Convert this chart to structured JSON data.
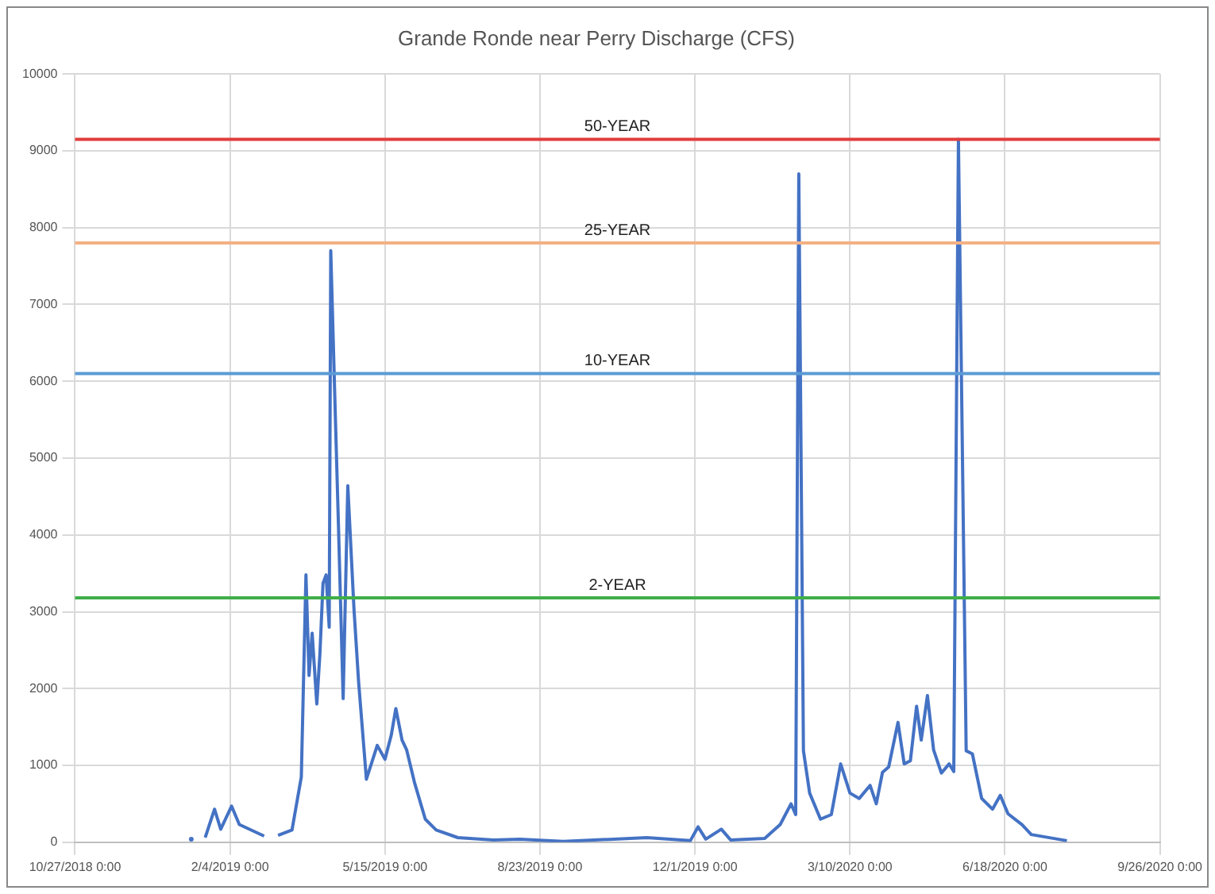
{
  "chart_data": {
    "type": "line",
    "title": "Grande Ronde near Perry Discharge (CFS)",
    "series": [
      {
        "color": "#4472c4",
        "x": [
          "2019-01-10",
          "2019-01-15",
          "2019-01-19",
          "2019-01-25",
          "2019-01-29",
          "2019-02-05",
          "2019-02-10",
          "2019-02-26",
          "2019-03-02",
          "2019-03-07",
          "2019-03-16",
          "2019-03-22",
          "2019-03-25",
          "2019-03-27",
          "2019-03-29",
          "2019-04-01",
          "2019-04-03",
          "2019-04-05",
          "2019-04-07",
          "2019-04-09",
          "2019-04-10",
          "2019-04-13",
          "2019-04-15",
          "2019-04-18",
          "2019-04-21",
          "2019-04-25",
          "2019-04-28",
          "2019-05-03",
          "2019-05-10",
          "2019-05-15",
          "2019-05-19",
          "2019-05-22",
          "2019-05-26",
          "2019-05-29",
          "2019-06-03",
          "2019-06-10",
          "2019-06-17",
          "2019-07-01",
          "2019-07-24",
          "2019-08-10",
          "2019-09-07",
          "2019-10-31",
          "2019-11-28",
          "2019-12-03",
          "2019-12-08",
          "2019-12-18",
          "2019-12-24",
          "2020-01-15",
          "2020-01-25",
          "2020-02-01",
          "2020-02-04",
          "2020-02-06",
          "2020-02-09",
          "2020-02-13",
          "2020-02-20",
          "2020-02-27",
          "2020-03-04",
          "2020-03-10",
          "2020-03-16",
          "2020-03-23",
          "2020-03-27",
          "2020-03-31",
          "2020-04-04",
          "2020-04-10",
          "2020-04-14",
          "2020-04-18",
          "2020-04-22",
          "2020-04-25",
          "2020-04-29",
          "2020-05-03",
          "2020-05-08",
          "2020-05-13",
          "2020-05-16",
          "2020-05-19",
          "2020-05-24",
          "2020-05-28",
          "2020-06-03",
          "2020-06-10",
          "2020-06-15",
          "2020-06-20",
          "2020-06-29",
          "2020-07-05",
          "2020-07-28"
        ],
        "values": [
          40,
          null,
          60,
          430,
          170,
          470,
          230,
          80,
          null,
          90,
          160,
          850,
          3480,
          2170,
          2720,
          1800,
          2450,
          3370,
          3480,
          2800,
          7700,
          5520,
          4100,
          1870,
          4640,
          3030,
          2080,
          820,
          1260,
          1080,
          1390,
          1740,
          1330,
          1200,
          780,
          300,
          160,
          60,
          30,
          40,
          10,
          60,
          20,
          200,
          40,
          170,
          30,
          50,
          230,
          500,
          360,
          8700,
          1190,
          640,
          300,
          360,
          1020,
          640,
          570,
          740,
          500,
          910,
          980,
          1560,
          1020,
          1060,
          1770,
          1330,
          1910,
          1200,
          900,
          1020,
          920,
          9150,
          1190,
          1150,
          570,
          430,
          610,
          370,
          230,
          100,
          20
        ]
      }
    ],
    "xlim": [
      "2018-10-27",
      "2020-09-26"
    ],
    "xticks": [
      {
        "value": "2018-10-27",
        "label": "10/27/2018 0:00"
      },
      {
        "value": "2019-02-04",
        "label": "2/4/2019 0:00"
      },
      {
        "value": "2019-05-15",
        "label": "5/15/2019 0:00"
      },
      {
        "value": "2019-08-23",
        "label": "8/23/2019 0:00"
      },
      {
        "value": "2019-12-01",
        "label": "12/1/2019 0:00"
      },
      {
        "value": "2020-03-10",
        "label": "3/10/2020 0:00"
      },
      {
        "value": "2020-06-18",
        "label": "6/18/2020 0:00"
      },
      {
        "value": "2020-09-26",
        "label": "9/26/2020 0:00"
      }
    ],
    "ylim": [
      0,
      10000
    ],
    "yticks": [
      0,
      1000,
      2000,
      3000,
      4000,
      5000,
      6000,
      7000,
      8000,
      9000,
      10000
    ],
    "ref_lines": [
      {
        "axis": "y",
        "value": 9150,
        "label": "50-YEAR",
        "color": "#e03c3c"
      },
      {
        "axis": "y",
        "value": 7800,
        "label": "25-YEAR",
        "color": "#f4b183"
      },
      {
        "axis": "y",
        "value": 6100,
        "label": "10-YEAR",
        "color": "#5b9bd5"
      },
      {
        "axis": "y",
        "value": 3180,
        "label": "2-YEAR",
        "color": "#3fae49"
      }
    ],
    "grid": true,
    "legend": false,
    "marker": "none",
    "line_style": "solid"
  }
}
